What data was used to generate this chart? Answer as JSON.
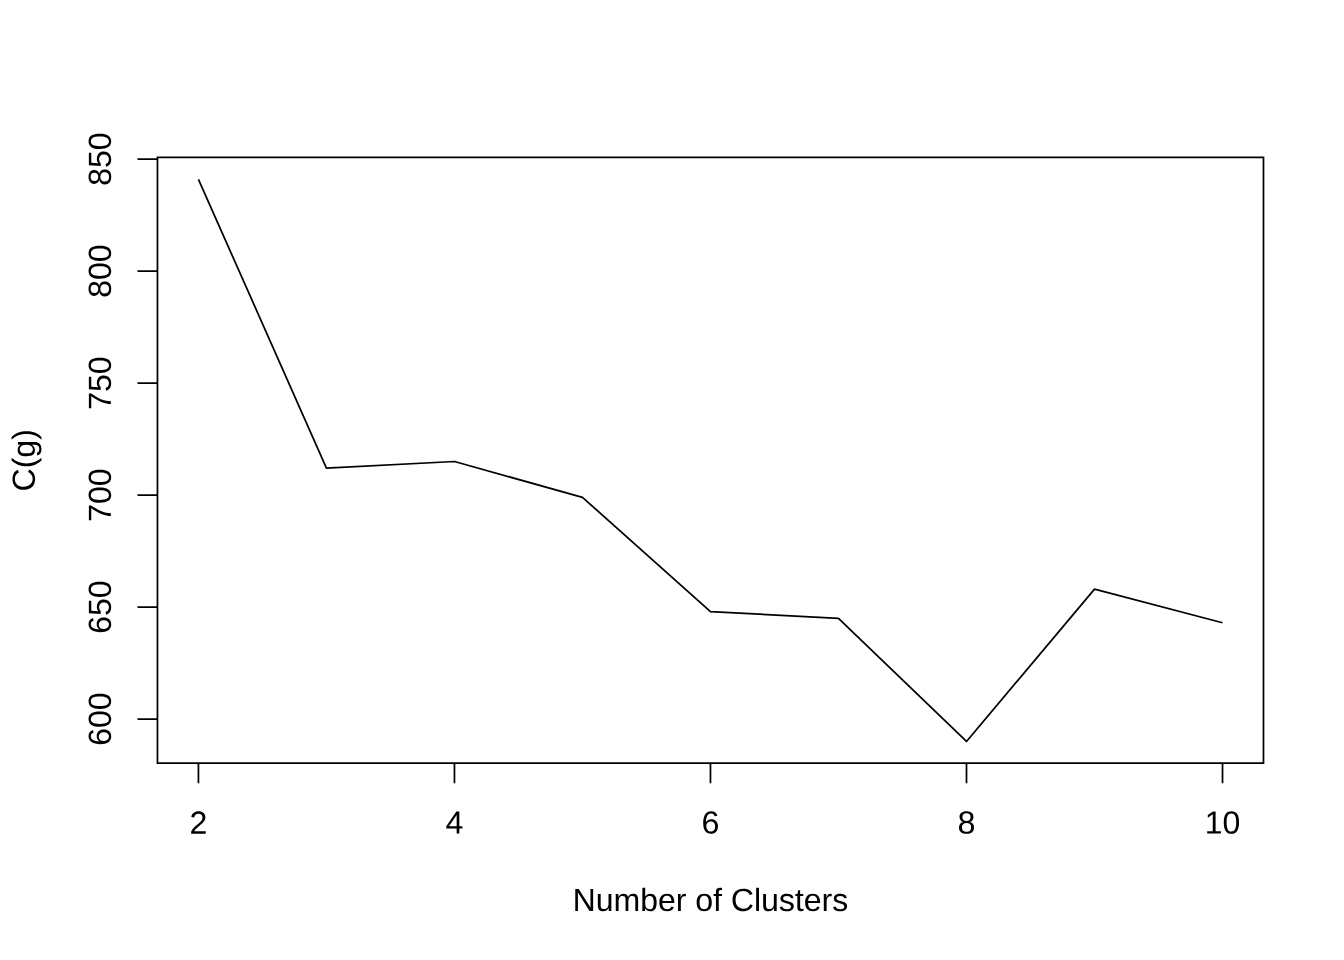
{
  "chart_data": {
    "type": "line",
    "xlabel": "Number of Clusters",
    "ylabel": "C(g)",
    "x": [
      2,
      3,
      4,
      5,
      6,
      7,
      8,
      9,
      10
    ],
    "values": [
      841,
      712,
      715,
      699,
      648,
      645,
      590,
      658,
      643
    ],
    "color": "#000000",
    "xlim": [
      1.68,
      10.32
    ],
    "ylim": [
      580.3,
      850.8
    ],
    "xticks": [
      2,
      4,
      6,
      8,
      10
    ],
    "yticks": [
      600,
      650,
      700,
      750,
      800,
      850
    ]
  }
}
